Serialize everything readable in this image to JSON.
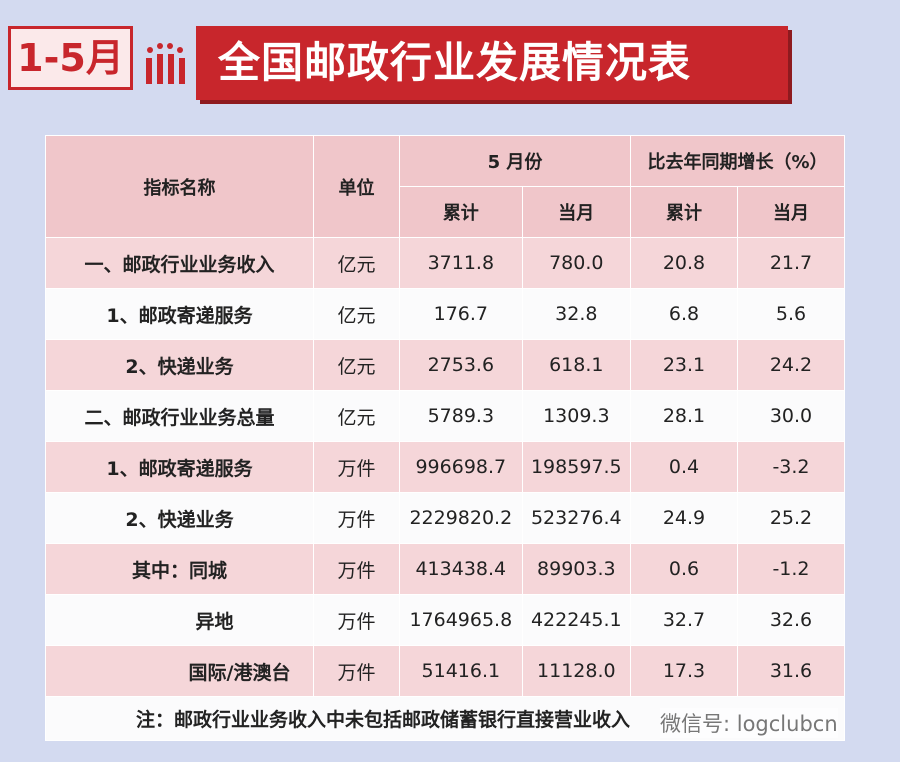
{
  "header": {
    "badge": "1-5月",
    "title": "全国邮政行业发展情况表"
  },
  "table": {
    "headers": {
      "name": "指标名称",
      "unit": "单位",
      "group1": "5 月份",
      "group2": "比去年同期增长（%）",
      "sub": [
        "累计",
        "当月",
        "累计",
        "当月"
      ]
    },
    "rows": [
      [
        "一、邮政行业业务收入",
        "亿元",
        "3711.8",
        "780.0",
        "20.8",
        "21.7"
      ],
      [
        "1、邮政寄递服务",
        "亿元",
        "176.7",
        "32.8",
        "6.8",
        "5.6"
      ],
      [
        "2、快递业务",
        "亿元",
        "2753.6",
        "618.1",
        "23.1",
        "24.2"
      ],
      [
        "二、邮政行业业务总量",
        "亿元",
        "5789.3",
        "1309.3",
        "28.1",
        "30.0"
      ],
      [
        "1、邮政寄递服务",
        "万件",
        "996698.7",
        "198597.5",
        "0.4",
        "-3.2"
      ],
      [
        "2、快递业务",
        "万件",
        "2229820.2",
        "523276.4",
        "24.9",
        "25.2"
      ],
      [
        "其中：同城",
        "万件",
        "413438.4",
        "89903.3",
        "0.6",
        "-1.2"
      ],
      [
        "异地",
        "万件",
        "1764965.8",
        "422245.1",
        "32.7",
        "32.6"
      ],
      [
        "国际/港澳台",
        "万件",
        "51416.1",
        "11128.0",
        "17.3",
        "31.6"
      ]
    ],
    "note": "注：邮政行业业务收入中未包括邮政储蓄银行直接营业收入"
  },
  "watermark": "微信号: logclubcn"
}
